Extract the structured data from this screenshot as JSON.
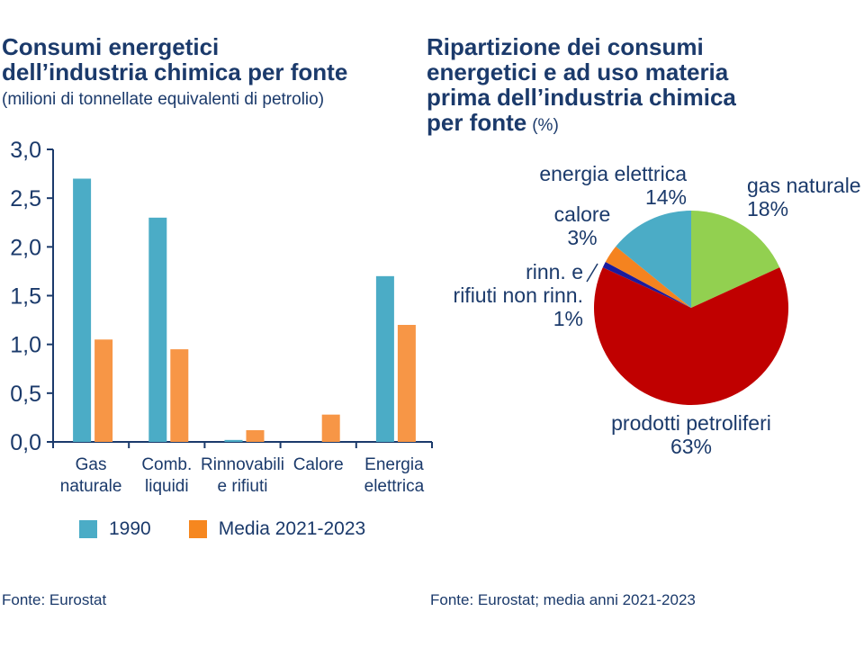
{
  "header": {
    "left_title": "Consumi energetici\ndell’industria chimica per fonte",
    "left_subtitle": "(milioni di tonnellate equivalenti di petrolio)",
    "right_title": "Ripartizione dei consumi\nenergetici e ad uso materia\nprima dell’industria chimica\nper fonte",
    "right_title_suffix": "(%)"
  },
  "footer": {
    "left_source": "Fonte: Eurostat",
    "right_source": "Fonte: Eurostat; media anni 2021-2023"
  },
  "colors": {
    "text_navy": "#1B3A6B",
    "axis": "#1B3A6B",
    "series_1990": "#4BACC6",
    "series_media": "#F79646",
    "legend_orange": "#F6871F",
    "pie_green": "#92D050",
    "pie_red": "#C00000",
    "pie_navy": "#1B1B9E",
    "pie_orange": "#F5831F",
    "pie_teal": "#4BACC6"
  },
  "legend": {
    "items": [
      {
        "label": "1990",
        "color": "#4BACC6"
      },
      {
        "label": "Media 2021-2023",
        "color": "#F6871F"
      }
    ]
  },
  "chart_data": [
    {
      "type": "bar",
      "title": "Consumi energetici dell’industria chimica per fonte",
      "ylabel": "milioni di tonnellate equivalenti di petrolio",
      "categories": [
        "Gas\nnaturale",
        "Comb.\nliquidi",
        "Rinnovabili\ne rifiuti",
        "Calore",
        "Energia\nelettrica"
      ],
      "series": [
        {
          "name": "1990",
          "color": "#4BACC6",
          "values": [
            2.7,
            2.3,
            0.02,
            0,
            1.7
          ]
        },
        {
          "name": "Media 2021-2023",
          "color": "#F79646",
          "values": [
            1.05,
            0.95,
            0.12,
            0.28,
            1.2
          ]
        }
      ],
      "ylim": [
        0,
        3
      ],
      "ytick_values": [
        0,
        0.5,
        1,
        1.5,
        2,
        2.5,
        3
      ],
      "ytick_labels": [
        "0,0",
        "0,5",
        "1,0",
        "1,5",
        "2,0",
        "2,5",
        "3,0"
      ],
      "grid": false,
      "legend_position": "bottom"
    },
    {
      "type": "pie",
      "title": "Ripartizione dei consumi energetici e ad uso materia prima dell’industria chimica per fonte (%)",
      "start_angle_deg": 0,
      "direction": "clockwise",
      "slices": [
        {
          "label": "gas naturale",
          "pct": 18,
          "pct_text": "18%",
          "color": "#92D050"
        },
        {
          "label": "prodotti petroliferi",
          "pct": 63,
          "pct_text": "63%",
          "color": "#C00000"
        },
        {
          "label": "rinn. e\nrifiuti non rinn.",
          "pct": 1,
          "pct_text": "1%",
          "color": "#1B1B9E"
        },
        {
          "label": "calore",
          "pct": 3,
          "pct_text": "3%",
          "color": "#F5831F"
        },
        {
          "label": "energia elettrica",
          "pct": 14,
          "pct_text": "14%",
          "color": "#4BACC6"
        }
      ]
    }
  ]
}
